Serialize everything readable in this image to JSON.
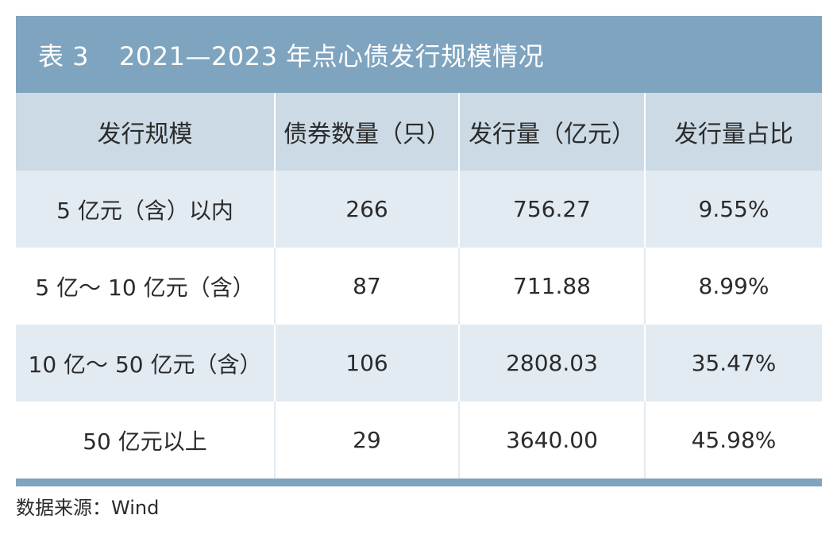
{
  "table": {
    "title_num": "表 3",
    "title_text": "2021—2023 年点心债发行规模情况",
    "headers": [
      "发行规模",
      "债券数量（只）",
      "发行量（亿元）",
      "发行量占比"
    ],
    "rows": [
      [
        "5 亿元（含）以内",
        "266",
        "756.27",
        "9.55%"
      ],
      [
        "5 亿～ 10 亿元（含）",
        "87",
        "711.88",
        "8.99%"
      ],
      [
        "10 亿～ 50 亿元（含）",
        "106",
        "2808.03",
        "35.47%"
      ],
      [
        "50 亿元以上",
        "29",
        "3640.00",
        "45.98%"
      ]
    ]
  },
  "source": "数据来源：Wind",
  "colors": {
    "title_bar": "#7fa4bf",
    "header_bg": "#cbdae5",
    "stripe_bg": "#e3ebf2"
  }
}
